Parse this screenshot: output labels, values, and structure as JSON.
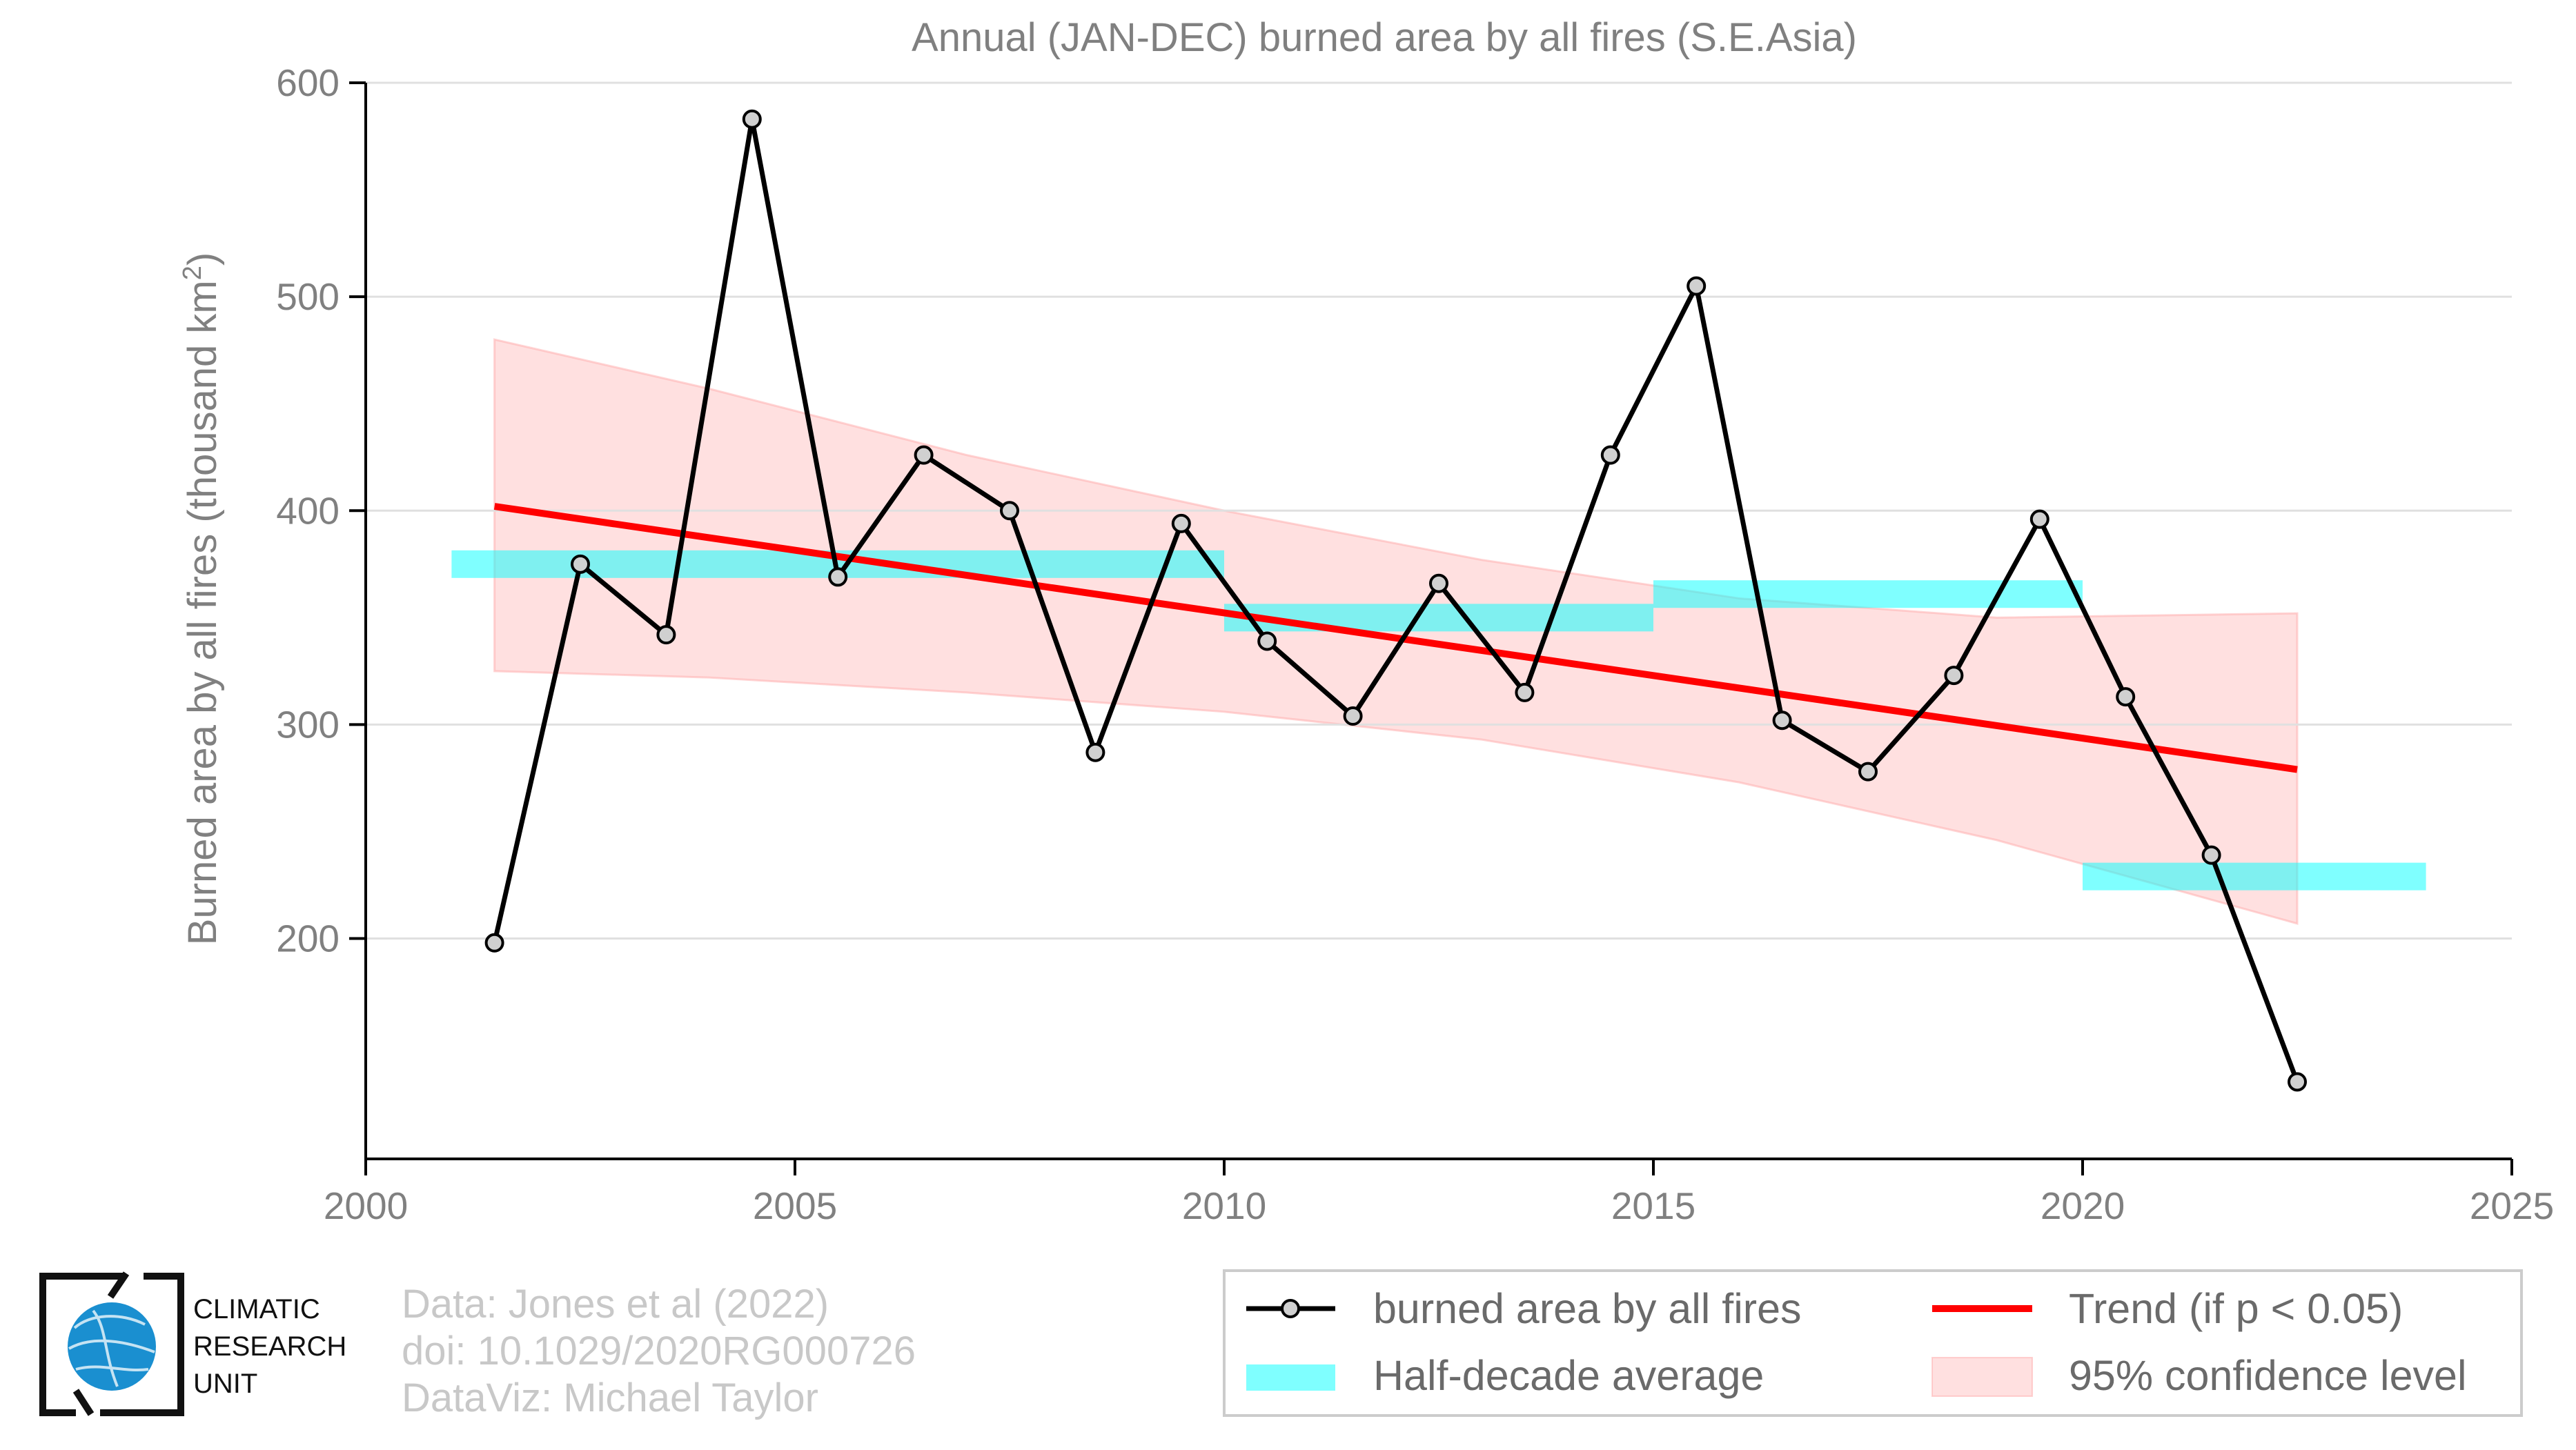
{
  "chart_data": {
    "type": "line",
    "title": "Annual (JAN-DEC) burned area by all fires (S.E.Asia)",
    "ylabel_main": "Burned area by all fires (thousand km",
    "ylabel_sup": "2",
    "ylabel_close": ")",
    "xlim": [
      2000,
      2025
    ],
    "ylim": [
      97,
      600
    ],
    "xticks": [
      2000,
      2005,
      2010,
      2015,
      2020,
      2025
    ],
    "yticks": [
      200,
      300,
      400,
      500,
      600
    ],
    "grid": "horizontal",
    "x": [
      2001.5,
      2002.5,
      2003.5,
      2004.5,
      2005.5,
      2006.5,
      2007.5,
      2008.5,
      2009.5,
      2010.5,
      2011.5,
      2012.5,
      2013.5,
      2014.5,
      2015.5,
      2016.5,
      2017.5,
      2018.5,
      2019.5,
      2020.5,
      2021.5,
      2022.5
    ],
    "series": [
      {
        "name": "burned area by all fires",
        "values": [
          198,
          375,
          342,
          583,
          369,
          426,
          400,
          287,
          394,
          339,
          304,
          366,
          315,
          426,
          505,
          302,
          278,
          323,
          396,
          313,
          239,
          133
        ]
      }
    ],
    "half_decade_average": [
      {
        "x_start": 2001.0,
        "x_end": 2005.0,
        "value": 375
      },
      {
        "x_start": 2005.0,
        "x_end": 2010.0,
        "value": 375
      },
      {
        "x_start": 2010.0,
        "x_end": 2015.0,
        "value": 350
      },
      {
        "x_start": 2015.0,
        "x_end": 2020.0,
        "value": 361
      },
      {
        "x_start": 2020.0,
        "x_end": 2024.0,
        "value": 229
      }
    ],
    "trend": {
      "x": [
        2001.5,
        2022.5
      ],
      "y": [
        402,
        279
      ]
    },
    "confidence_band": {
      "x": [
        2001.5,
        2004.0,
        2007.0,
        2010.0,
        2013.0,
        2016.0,
        2019.0,
        2022.5
      ],
      "upper": [
        480,
        457,
        426,
        400,
        377,
        359,
        350,
        352
      ],
      "lower": [
        325,
        322,
        315,
        306,
        293,
        273,
        246,
        207
      ]
    },
    "colors": {
      "series": "#000000",
      "marker_fill": "#d0d0d0",
      "half_decade": "#00ffff",
      "trend": "#ff0000",
      "confidence": "#ffcccc"
    },
    "legend": {
      "placement": "bottom-right",
      "entries": [
        {
          "label": "burned area by all fires",
          "kind": "line-marker"
        },
        {
          "label": "Trend (if p < 0.05)",
          "kind": "trend"
        },
        {
          "label": "Half-decade average",
          "kind": "half-decade"
        },
        {
          "label": "95% confidence level",
          "kind": "confidence"
        }
      ]
    }
  },
  "credits": {
    "line1": "Data: Jones et al (2022)",
    "line2": "doi: 10.1029/2020RG000726",
    "line3": "DataViz: Michael Taylor"
  },
  "logo": {
    "line1": "CLIMATIC",
    "line2": "RESEARCH",
    "line3": "UNIT",
    "icon": "globe-logo-icon"
  }
}
